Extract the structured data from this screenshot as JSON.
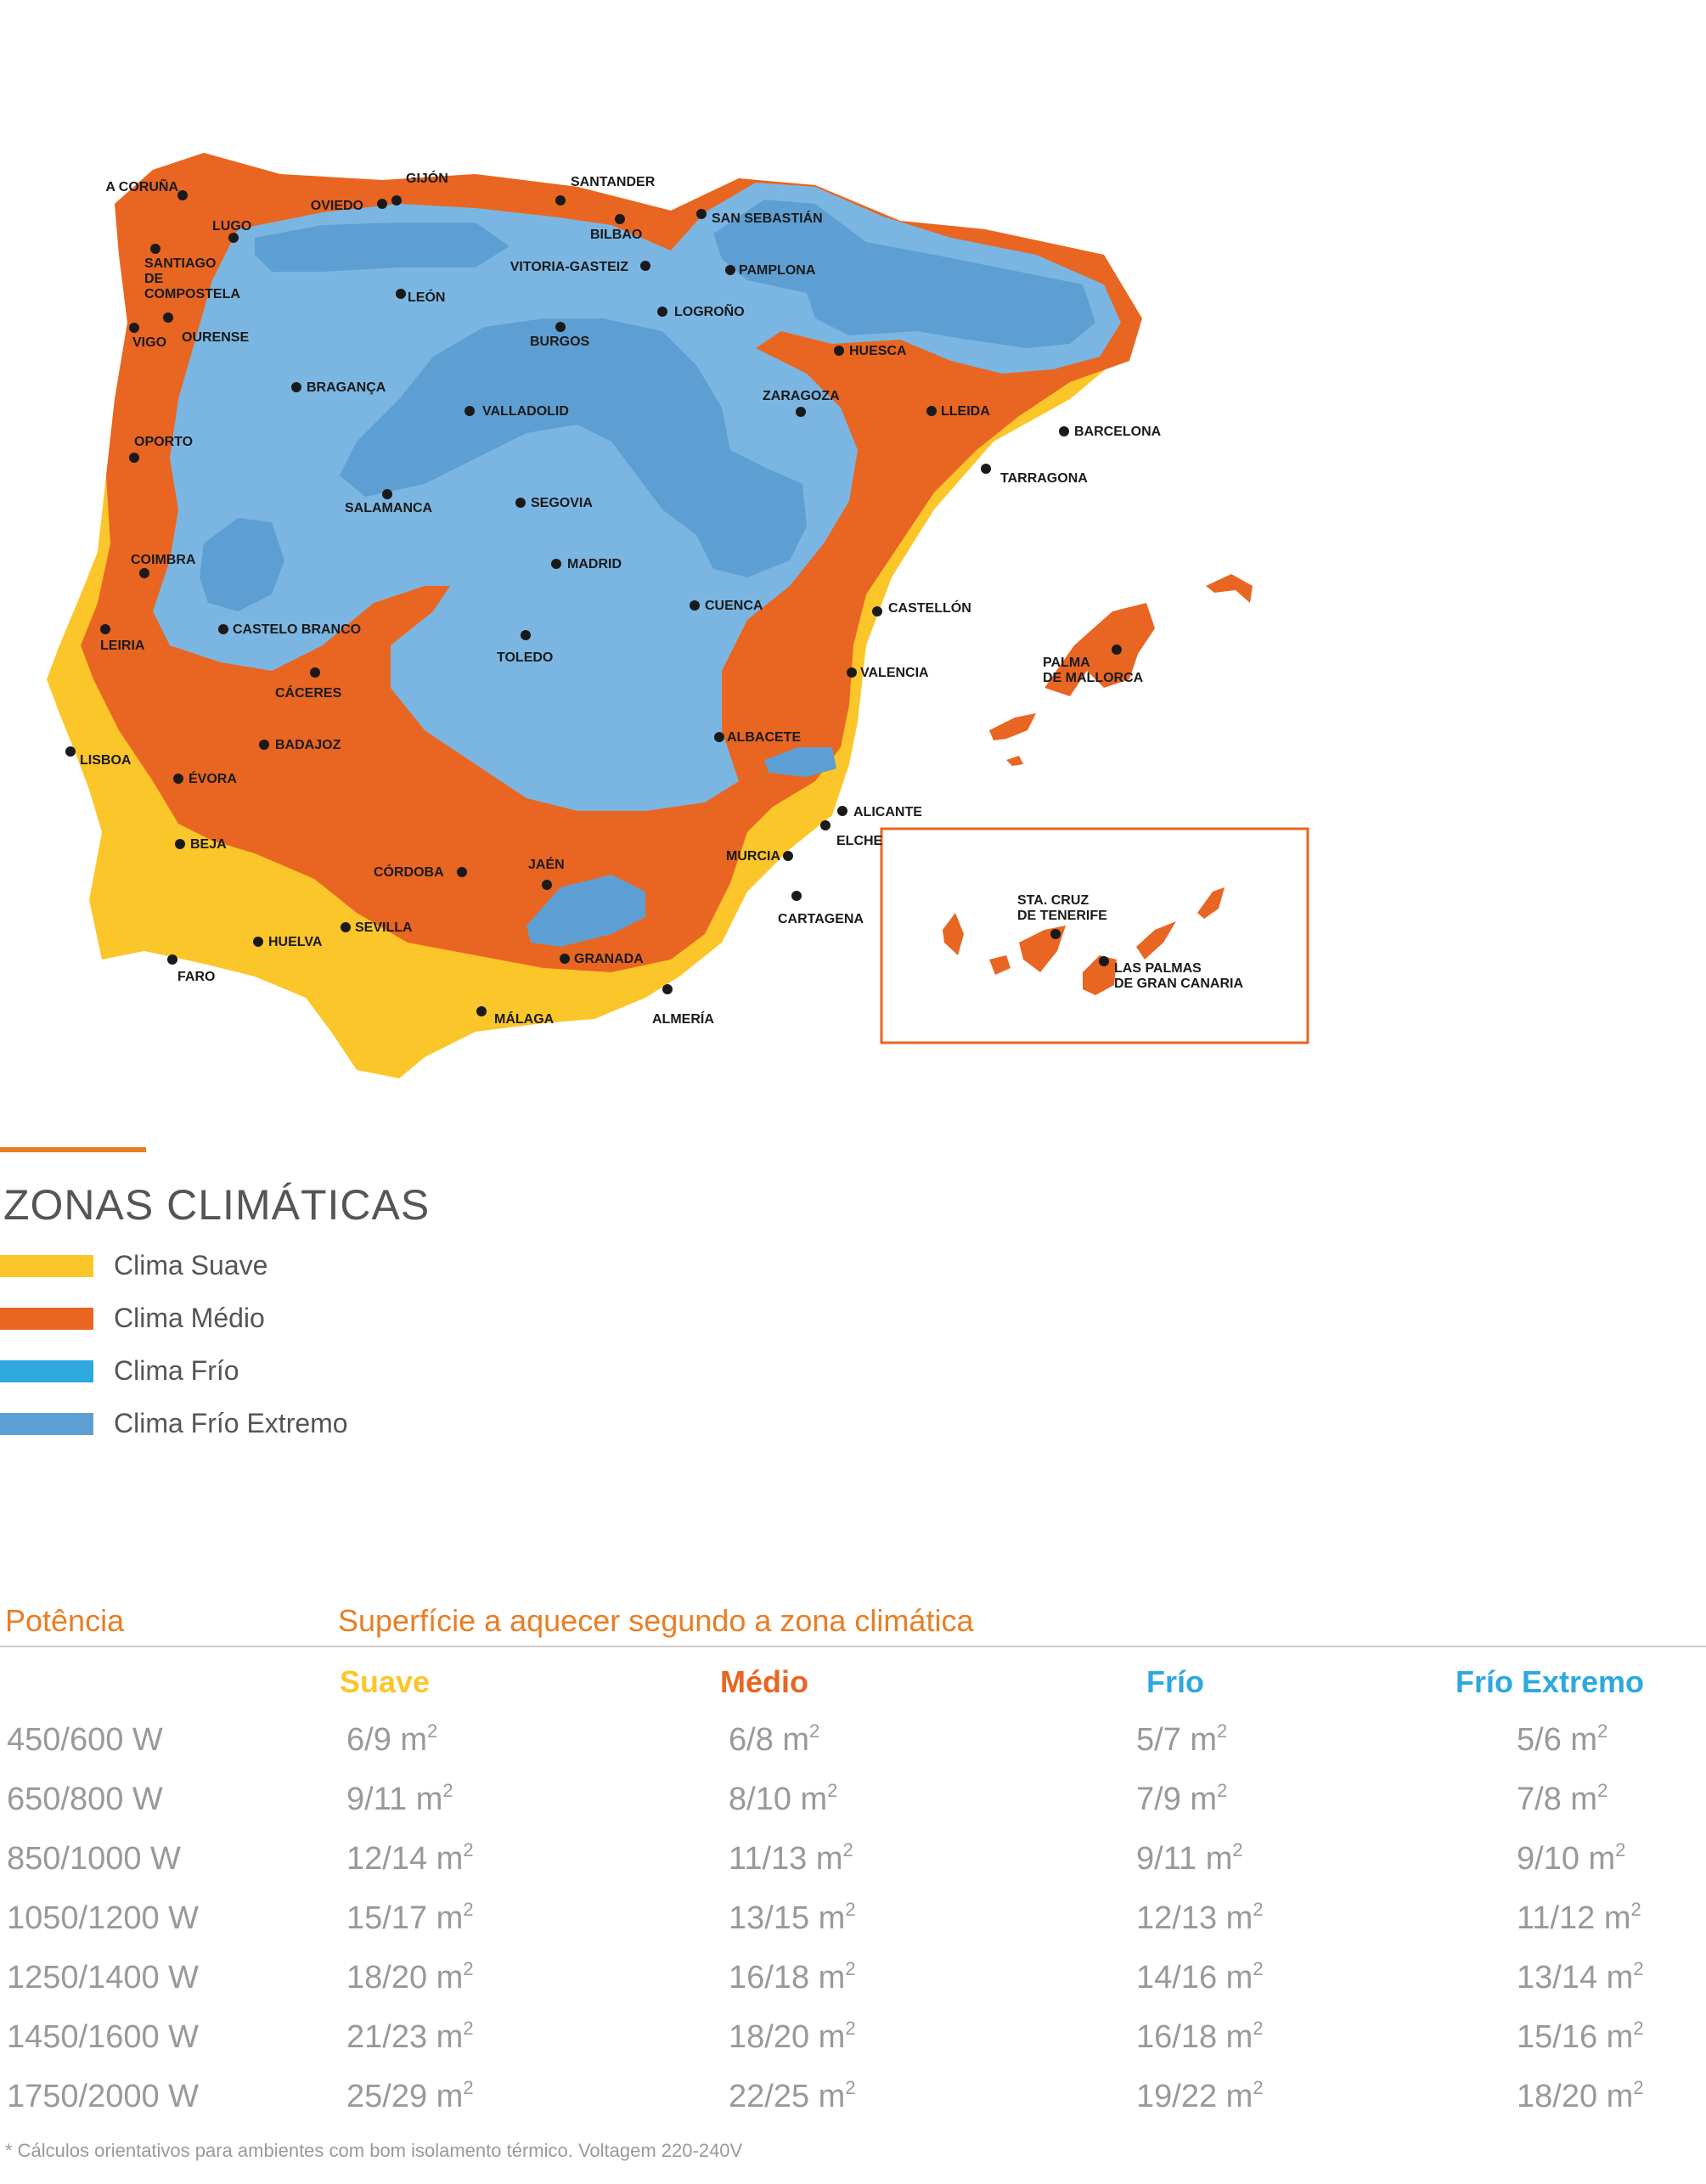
{
  "colors": {
    "suave": "#fbc62a",
    "medio": "#e86622",
    "frio": "#7bb6e2",
    "frio_extremo": "#5e9fd3",
    "legend_frio": "#2ea8df",
    "accent": "#e87e24",
    "text_gray": "#999999"
  },
  "map": {
    "cities": [
      {
        "id": "a-coruna",
        "name": "A CORUÑA"
      },
      {
        "id": "gijon",
        "name": "GIJÓN"
      },
      {
        "id": "oviedo",
        "name": "OVIEDO"
      },
      {
        "id": "santander",
        "name": "SANTANDER"
      },
      {
        "id": "bilbao",
        "name": "BILBAO"
      },
      {
        "id": "san-sebastian",
        "name": "SAN SEBASTIÁN"
      },
      {
        "id": "lugo",
        "name": "LUGO"
      },
      {
        "id": "santiago",
        "name": "SANTIAGO DE COMPOSTELA"
      },
      {
        "id": "vitoria",
        "name": "VITORIA-GASTEIZ"
      },
      {
        "id": "pamplona",
        "name": "PAMPLONA"
      },
      {
        "id": "leon",
        "name": "LEÓN"
      },
      {
        "id": "logrono",
        "name": "LOGROÑO"
      },
      {
        "id": "vigo",
        "name": "VIGO"
      },
      {
        "id": "ourense",
        "name": "OURENSE"
      },
      {
        "id": "burgos",
        "name": "BURGOS"
      },
      {
        "id": "huesca",
        "name": "HUESCA"
      },
      {
        "id": "braganca",
        "name": "BRAGANÇA"
      },
      {
        "id": "zaragoza",
        "name": "ZARAGOZA"
      },
      {
        "id": "valladolid",
        "name": "VALLADOLID"
      },
      {
        "id": "lleida",
        "name": "LLEIDA"
      },
      {
        "id": "barcelona",
        "name": "BARCELONA"
      },
      {
        "id": "oporto",
        "name": "OPORTO"
      },
      {
        "id": "tarragona",
        "name": "TARRAGONA"
      },
      {
        "id": "salamanca",
        "name": "SALAMANCA"
      },
      {
        "id": "segovia",
        "name": "SEGOVIA"
      },
      {
        "id": "coimbra",
        "name": "COIMBRA"
      },
      {
        "id": "madrid",
        "name": "MADRID"
      },
      {
        "id": "cuenca",
        "name": "CUENCA"
      },
      {
        "id": "castellon",
        "name": "CASTELLÓN"
      },
      {
        "id": "leiria",
        "name": "LEIRIA"
      },
      {
        "id": "castelo-branco",
        "name": "CASTELO BRANCO"
      },
      {
        "id": "toledo",
        "name": "TOLEDO"
      },
      {
        "id": "palma",
        "name": "PALMA DE MALLORCA"
      },
      {
        "id": "caceres",
        "name": "CÁCERES"
      },
      {
        "id": "valencia",
        "name": "VALENCIA"
      },
      {
        "id": "albacete",
        "name": "ALBACETE"
      },
      {
        "id": "badajoz",
        "name": "BADAJOZ"
      },
      {
        "id": "lisboa",
        "name": "LISBOA"
      },
      {
        "id": "evora",
        "name": "ÉVORA"
      },
      {
        "id": "alicante",
        "name": "ALICANTE"
      },
      {
        "id": "elche",
        "name": "ELCHE"
      },
      {
        "id": "beja",
        "name": "BEJA"
      },
      {
        "id": "murcia",
        "name": "MURCIA"
      },
      {
        "id": "cordoba",
        "name": "CÓRDOBA"
      },
      {
        "id": "jaen",
        "name": "JAÉN"
      },
      {
        "id": "cartagena",
        "name": "CARTAGENA"
      },
      {
        "id": "sevilla",
        "name": "SEVILLA"
      },
      {
        "id": "huelva",
        "name": "HUELVA"
      },
      {
        "id": "granada",
        "name": "GRANADA"
      },
      {
        "id": "faro",
        "name": "FARO"
      },
      {
        "id": "malaga",
        "name": "MÁLAGA"
      },
      {
        "id": "almeria",
        "name": "ALMERÍA"
      },
      {
        "id": "tenerife",
        "name": "STA. CRUZ DE TENERIFE"
      },
      {
        "id": "las-palmas",
        "name": "LAS PALMAS DE GRAN CANARIA"
      }
    ]
  },
  "legend": {
    "title": "ZONAS CLIMÁTICAS",
    "items": [
      {
        "label": "Clima Suave",
        "color": "#fbc62a"
      },
      {
        "label": "Clima Médio",
        "color": "#e86622"
      },
      {
        "label": "Clima Frío",
        "color": "#2ea8df"
      },
      {
        "label": "Clima Frío Extremo",
        "color": "#5e9fd3"
      }
    ]
  },
  "table": {
    "header_power": "Potência",
    "header_surface": "Superfície a aquecer segundo a zona climática",
    "zones": [
      {
        "label": "Suave",
        "color": "#fbc62a"
      },
      {
        "label": "Médio",
        "color": "#e86622"
      },
      {
        "label": "Frío",
        "color": "#2ea8df"
      },
      {
        "label": "Frío Extremo",
        "color": "#2ea8df"
      }
    ],
    "unit": "m",
    "unit_exp": "2",
    "rows": [
      {
        "power": "450/600 W",
        "values": [
          "6/9",
          "6/8",
          "5/7",
          "5/6"
        ]
      },
      {
        "power": "650/800 W",
        "values": [
          "9/11",
          "8/10",
          "7/9",
          "7/8"
        ]
      },
      {
        "power": "850/1000 W",
        "values": [
          "12/14",
          "11/13",
          "9/11",
          "9/10"
        ]
      },
      {
        "power": "1050/1200 W",
        "values": [
          "15/17",
          "13/15",
          "12/13",
          "11/12"
        ]
      },
      {
        "power": "1250/1400 W",
        "values": [
          "18/20",
          "16/18",
          "14/16",
          "13/14"
        ]
      },
      {
        "power": "1450/1600 W",
        "values": [
          "21/23",
          "18/20",
          "16/18",
          "15/16"
        ]
      },
      {
        "power": "1750/2000 W",
        "values": [
          "25/29",
          "22/25",
          "19/22",
          "18/20"
        ]
      }
    ]
  },
  "footnote": "* Cálculos orientativos para ambientes com bom isolamento térmico. Voltagem 220-240V"
}
